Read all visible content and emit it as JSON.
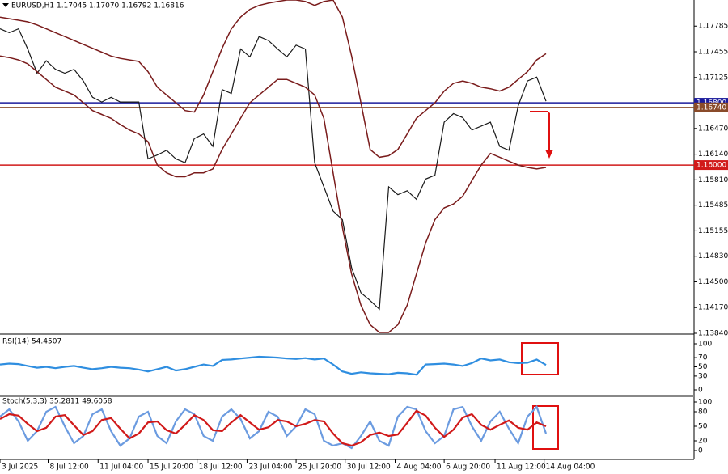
{
  "chart_data": {
    "type": "line",
    "title": "EURUSD,H1  1.17045 1.17070 1.16792 1.16816",
    "xlim": [
      0,
      75
    ],
    "xticks": [
      {
        "value": 0,
        "label": "3 Jul 2025"
      },
      {
        "value": 5.2,
        "label": "8 Jul 12:00"
      },
      {
        "value": 10.6,
        "label": "11 Jul 04:00"
      },
      {
        "value": 16,
        "label": "15 Jul 20:00"
      },
      {
        "value": 21.3,
        "label": "18 Jul 12:00"
      },
      {
        "value": 26.7,
        "label": "23 Jul 04:00"
      },
      {
        "value": 32,
        "label": "25 Jul 20:00"
      },
      {
        "value": 37.3,
        "label": "30 Jul 12:00"
      },
      {
        "value": 42.7,
        "label": "4 Aug 04:00"
      },
      {
        "value": 48,
        "label": "6 Aug 20:00"
      },
      {
        "value": 53.5,
        "label": "11 Aug 12:00"
      },
      {
        "value": 58.8,
        "label": "14 Aug 04:00"
      }
    ],
    "ylim": [
      1.1384,
      1.1812
    ],
    "yticks": [
      1.17785,
      1.17455,
      1.17125,
      {
        "value": 1.1647,
        "label": "1.16470"
      },
      {
        "value": 1.1614,
        "label": "1.16140"
      },
      {
        "value": 1.1581,
        "label": "1.15810"
      },
      1.15485,
      1.15155,
      {
        "value": 1.1483,
        "label": "1.14830"
      },
      {
        "value": 1.145,
        "label": "1.14500"
      },
      {
        "value": 1.1417,
        "label": "1.14170"
      },
      {
        "value": 1.1384,
        "label": "1.13840"
      }
    ],
    "levels": [
      {
        "value": 1.168,
        "label": "1.16800",
        "color": "#1c1c9c"
      },
      {
        "value": 1.1674,
        "label": "1.16740",
        "color": "#8a4b2a"
      },
      {
        "value": 1.16,
        "label": "1.16000",
        "color": "#d11a1a"
      }
    ],
    "series": [
      {
        "color": "#1a1a1a",
        "values": [
          1.1775,
          1.177,
          1.1775,
          1.1749,
          1.1718,
          1.1734,
          1.1723,
          1.1718,
          1.1723,
          1.1708,
          1.1687,
          1.1681,
          1.1687,
          1.1681,
          1.1681,
          1.1681,
          1.1608,
          1.1613,
          1.1619,
          1.1608,
          1.1603,
          1.1634,
          1.164,
          1.1624,
          1.1697,
          1.1692,
          1.1749,
          1.1739,
          1.1765,
          1.176,
          1.1749,
          1.1739,
          1.1754,
          1.1749,
          1.1603,
          1.1572,
          1.1541,
          1.153,
          1.1468,
          1.1436,
          1.1426,
          1.1415,
          1.1572,
          1.1562,
          1.1567,
          1.1556,
          1.1582,
          1.1587,
          1.1655,
          1.1666,
          1.1661,
          1.1645,
          1.165,
          1.1655,
          1.1624,
          1.1619,
          1.1676,
          1.1708,
          1.1713,
          1.1682
        ]
      },
      {
        "color": "#7a1c1c",
        "values": [
          1.179,
          1.1788,
          1.1786,
          1.1784,
          1.178,
          1.1775,
          1.177,
          1.1765,
          1.176,
          1.1755,
          1.175,
          1.1745,
          1.174,
          1.1737,
          1.1735,
          1.1733,
          1.172,
          1.17,
          1.169,
          1.168,
          1.167,
          1.1668,
          1.169,
          1.172,
          1.175,
          1.1775,
          1.179,
          1.18,
          1.1805,
          1.1808,
          1.181,
          1.1812,
          1.1812,
          1.181,
          1.1805,
          1.181,
          1.1812,
          1.179,
          1.174,
          1.168,
          1.162,
          1.161,
          1.1612,
          1.162,
          1.164,
          1.166,
          1.167,
          1.168,
          1.1695,
          1.1705,
          1.1708,
          1.1705,
          1.17,
          1.1698,
          1.1695,
          1.17,
          1.171,
          1.172,
          1.1735,
          1.1743
        ]
      },
      {
        "color": "#7a1c1c",
        "values": [
          1.174,
          1.1738,
          1.1735,
          1.173,
          1.172,
          1.171,
          1.17,
          1.1695,
          1.169,
          1.168,
          1.167,
          1.1665,
          1.166,
          1.1652,
          1.1645,
          1.164,
          1.163,
          1.16,
          1.159,
          1.1585,
          1.1585,
          1.159,
          1.159,
          1.1595,
          1.162,
          1.164,
          1.166,
          1.168,
          1.169,
          1.17,
          1.171,
          1.171,
          1.1705,
          1.17,
          1.169,
          1.166,
          1.159,
          1.152,
          1.146,
          1.142,
          1.1395,
          1.1385,
          1.1385,
          1.1395,
          1.142,
          1.146,
          1.15,
          1.153,
          1.1545,
          1.155,
          1.156,
          1.158,
          1.16,
          1.1615,
          1.161,
          1.1605,
          1.16,
          1.1597,
          1.1595,
          1.1597
        ]
      }
    ],
    "panels": [
      {
        "title": "RSI(14) 54.4507",
        "ylim": [
          0,
          100
        ],
        "yticks": [
          100,
          70,
          50,
          30,
          0
        ],
        "series": [
          {
            "color": "#2f8ee0",
            "values": [
              55,
              57,
              56,
              52,
              48,
              50,
              47,
              50,
              52,
              48,
              45,
              47,
              50,
              48,
              47,
              44,
              40,
              45,
              50,
              42,
              45,
              50,
              55,
              52,
              65,
              66,
              68,
              70,
              72,
              71,
              70,
              68,
              67,
              69,
              66,
              68,
              55,
              40,
              35,
              38,
              36,
              35,
              34,
              37,
              36,
              33,
              55,
              56,
              57,
              55,
              52,
              58,
              68,
              64,
              66,
              60,
              58,
              59,
              66,
              54
            ]
          }
        ]
      },
      {
        "title": "Stoch(5,3,3) 35.2811 49.6058",
        "ylim": [
          0,
          100
        ],
        "yticks": [
          100,
          80,
          50,
          20,
          0
        ],
        "series": [
          {
            "color": "#6b9be0",
            "values": [
              70,
              85,
              60,
              20,
              40,
              80,
              90,
              50,
              15,
              30,
              75,
              85,
              40,
              10,
              25,
              70,
              80,
              30,
              15,
              60,
              85,
              75,
              30,
              20,
              70,
              85,
              65,
              25,
              40,
              80,
              70,
              30,
              50,
              85,
              75,
              20,
              10,
              15,
              5,
              30,
              60,
              20,
              10,
              70,
              90,
              85,
              40,
              15,
              30,
              85,
              90,
              50,
              20,
              60,
              80,
              45,
              15,
              70,
              90,
              35
            ]
          },
          {
            "color": "#d11a1a",
            "values": [
              65,
              75,
              72,
              55,
              40,
              47,
              70,
              73,
              52,
              32,
              40,
              63,
              67,
              45,
              25,
              35,
              58,
              60,
              42,
              35,
              53,
              73,
              63,
              42,
              40,
              58,
              73,
              58,
              43,
              48,
              63,
              60,
              50,
              55,
              63,
              60,
              35,
              15,
              10,
              17,
              32,
              37,
              30,
              33,
              57,
              82,
              72,
              47,
              28,
              43,
              68,
              75,
              53,
              43,
              53,
              62,
              47,
              43,
              58,
              50
            ]
          }
        ]
      }
    ]
  }
}
